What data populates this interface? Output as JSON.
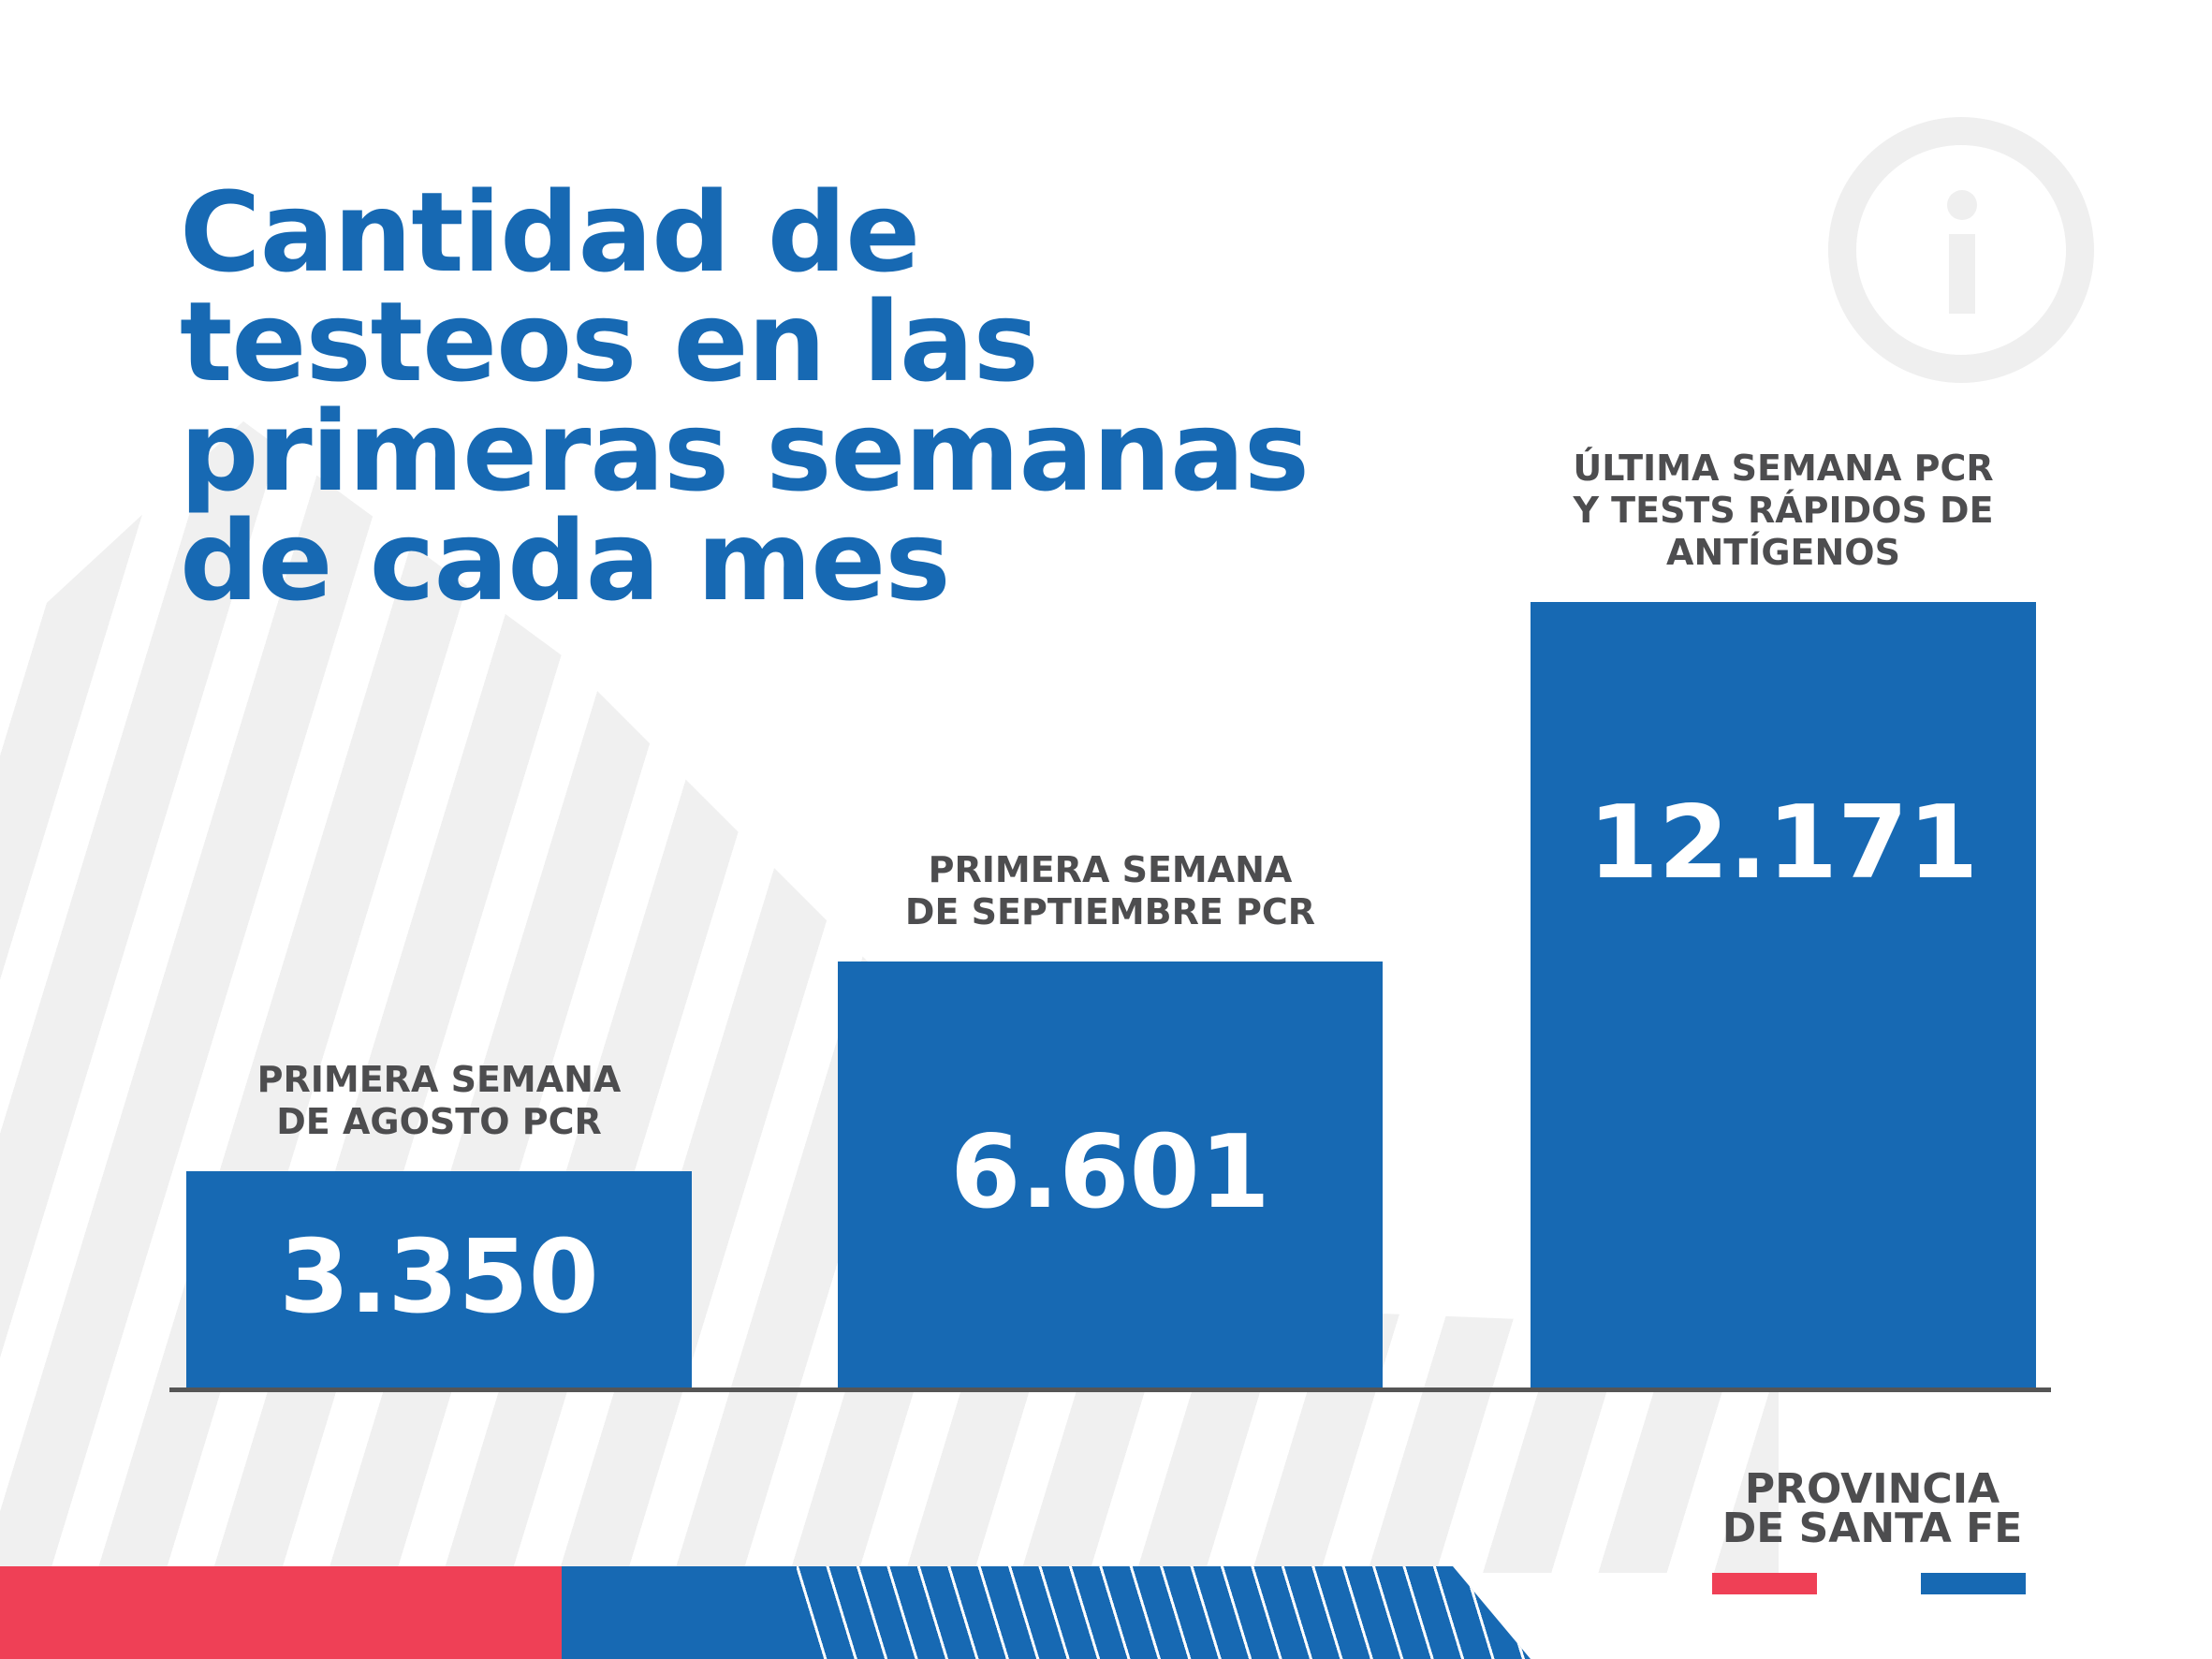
{
  "title_lines": [
    "Cantidad de",
    "testeos en las",
    "primeras semanas",
    "de cada mes"
  ],
  "icon": "info-icon",
  "brand": {
    "line1": "PROVINCIA",
    "line2": "DE SANTA FE"
  },
  "colors": {
    "blue": "#1769b3",
    "red": "#ef4056",
    "text_gray": "#4d4d4f",
    "title_blue": "#1769b3"
  },
  "chart_data": {
    "type": "bar",
    "title": "Cantidad de testeos en las primeras semanas de cada mes",
    "categories": [
      [
        "PRIMERA SEMANA",
        "DE AGOSTO PCR"
      ],
      [
        "PRIMERA SEMANA",
        "DE SEPTIEMBRE PCR"
      ],
      [
        "ÚLTIMA SEMANA PCR",
        "Y TESTS RÁPIDOS DE",
        "ANTÍGENOS"
      ]
    ],
    "values": [
      3350,
      6601,
      12171
    ],
    "value_labels": [
      "3.350",
      "6.601",
      "12.171"
    ],
    "xlabel": "",
    "ylabel": "",
    "ylim": [
      0,
      15000
    ],
    "grid": false
  }
}
